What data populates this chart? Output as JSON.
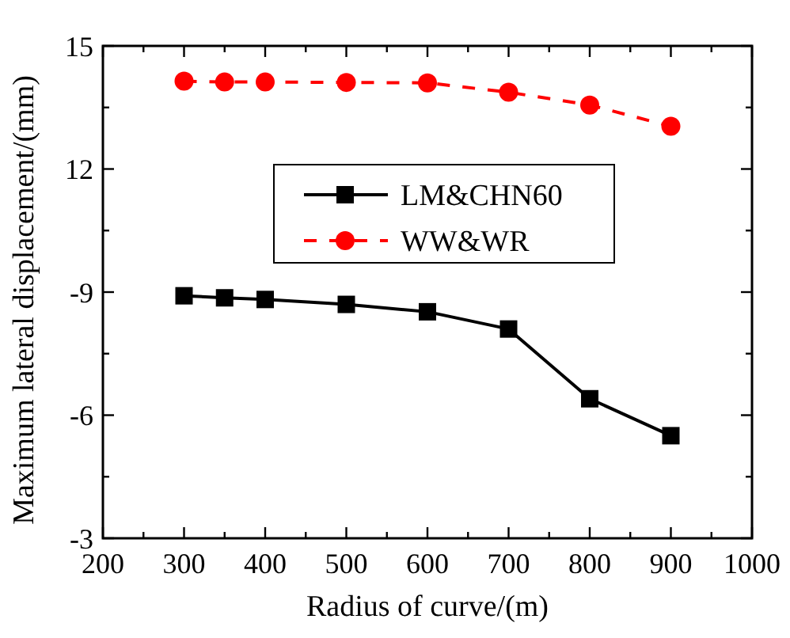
{
  "chart_data": {
    "type": "line",
    "xlabel": "Radius of curve/(m)",
    "ylabel": "Maximum lateral displacement/(mm)",
    "x": [
      300,
      350,
      400,
      500,
      600,
      700,
      800,
      900
    ],
    "series": [
      {
        "name": "LM&CHN60",
        "color": "#000000",
        "marker": "square",
        "line_style": "solid",
        "values": [
          -8.91,
          -8.86,
          -8.82,
          -8.7,
          -8.52,
          -8.1,
          -6.4,
          -5.5
        ]
      },
      {
        "name": "WW&WR",
        "color": "#ff0000",
        "marker": "circle",
        "line_style": "dashed",
        "values": [
          -14.14,
          -14.12,
          -14.12,
          -14.11,
          -14.1,
          -13.87,
          -13.56,
          -13.04
        ]
      }
    ],
    "xlim": [
      200,
      1000
    ],
    "xticks": [
      200,
      {
        "value": 250,
        "label": null
      },
      300,
      {
        "value": 350,
        "label": null
      },
      400,
      {
        "value": 450,
        "label": null
      },
      500,
      {
        "value": 550,
        "label": null
      },
      600,
      {
        "value": 650,
        "label": null
      },
      700,
      {
        "value": 750,
        "label": null
      },
      800,
      {
        "value": 850,
        "label": null
      },
      900,
      {
        "value": 950,
        "label": null
      },
      1000
    ],
    "ylim": [
      -3,
      -15
    ],
    "yticks": [
      {
        "value": -3,
        "label": "-3"
      },
      {
        "value": -4.5,
        "label": null
      },
      {
        "value": -6,
        "label": "-6"
      },
      {
        "value": -7.5,
        "label": null
      },
      {
        "value": -9,
        "label": "-9"
      },
      {
        "value": -10.5,
        "label": null
      },
      {
        "value": -12,
        "label": "12"
      },
      {
        "value": -13.5,
        "label": null
      },
      {
        "value": -15,
        "label": "15"
      }
    ],
    "grid": false,
    "legend": "center"
  }
}
